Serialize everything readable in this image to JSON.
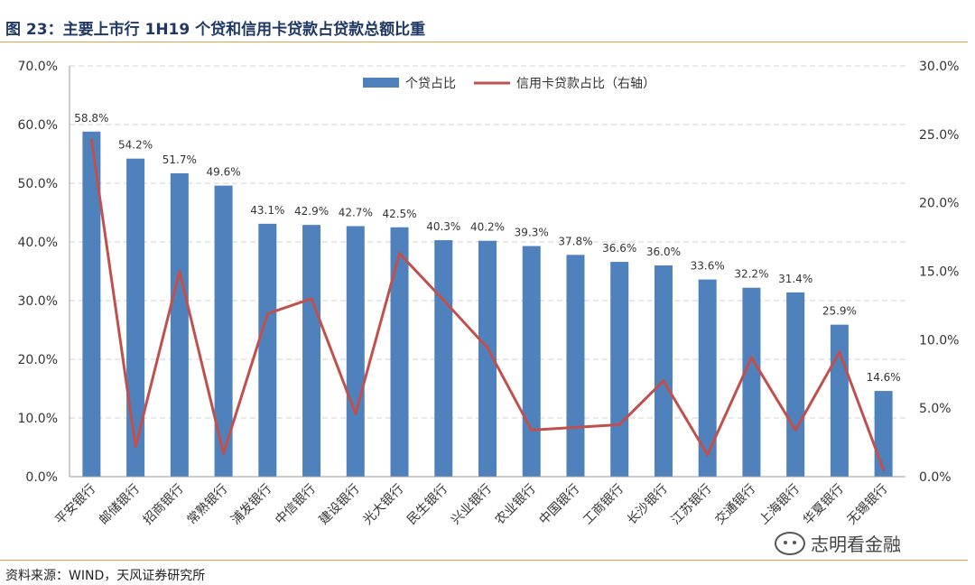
{
  "figure": {
    "title": "图 23：主要上市行 1H19 个贷和信用卡贷款占贷款总额比重",
    "source": "资料来源：WIND，天风证券研究所",
    "watermark": "志明看金融"
  },
  "colors": {
    "bar": "#4f81bd",
    "line": "#c0504d",
    "grid": "#d0d0d0",
    "rule": "#e2a054"
  },
  "chart_data": {
    "type": "bar",
    "categories": [
      "平安银行",
      "邮储银行",
      "招商银行",
      "常熟银行",
      "浦发银行",
      "中信银行",
      "建设银行",
      "光大银行",
      "民生银行",
      "兴业银行",
      "农业银行",
      "中国银行",
      "工商银行",
      "长沙银行",
      "江苏银行",
      "交通银行",
      "上海银行",
      "华夏银行",
      "无锡银行"
    ],
    "series": [
      {
        "name": "个贷占比",
        "type": "bar",
        "axis": "left",
        "values": [
          58.8,
          54.2,
          51.7,
          49.6,
          43.1,
          42.9,
          42.7,
          42.5,
          40.3,
          40.2,
          39.3,
          37.8,
          36.6,
          36.0,
          33.6,
          32.2,
          31.4,
          25.9,
          14.6
        ],
        "labels": [
          "58.8%",
          "54.2%",
          "51.7%",
          "49.6%",
          "43.1%",
          "42.9%",
          "42.7%",
          "42.5%",
          "40.3%",
          "40.2%",
          "39.3%",
          "37.8%",
          "36.6%",
          "36.0%",
          "33.6%",
          "32.2%",
          "31.4%",
          "25.9%",
          "14.6%"
        ]
      },
      {
        "name": "信用卡贷款占比（右轴）",
        "type": "line",
        "axis": "right",
        "values": [
          24.6,
          2.2,
          15.0,
          1.7,
          11.9,
          13.0,
          4.6,
          16.3,
          12.9,
          9.4,
          3.4,
          3.6,
          3.8,
          7.0,
          1.6,
          8.7,
          3.4,
          9.1,
          0.5
        ]
      }
    ],
    "ylim": [
      0,
      70
    ],
    "y2lim": [
      0,
      30
    ],
    "yticks": [
      "0.0%",
      "10.0%",
      "20.0%",
      "30.0%",
      "40.0%",
      "50.0%",
      "60.0%",
      "70.0%"
    ],
    "y2ticks": [
      "0.0%",
      "5.0%",
      "10.0%",
      "15.0%",
      "20.0%",
      "25.0%",
      "30.0%"
    ],
    "grid": true,
    "legend_position": "top-center"
  }
}
